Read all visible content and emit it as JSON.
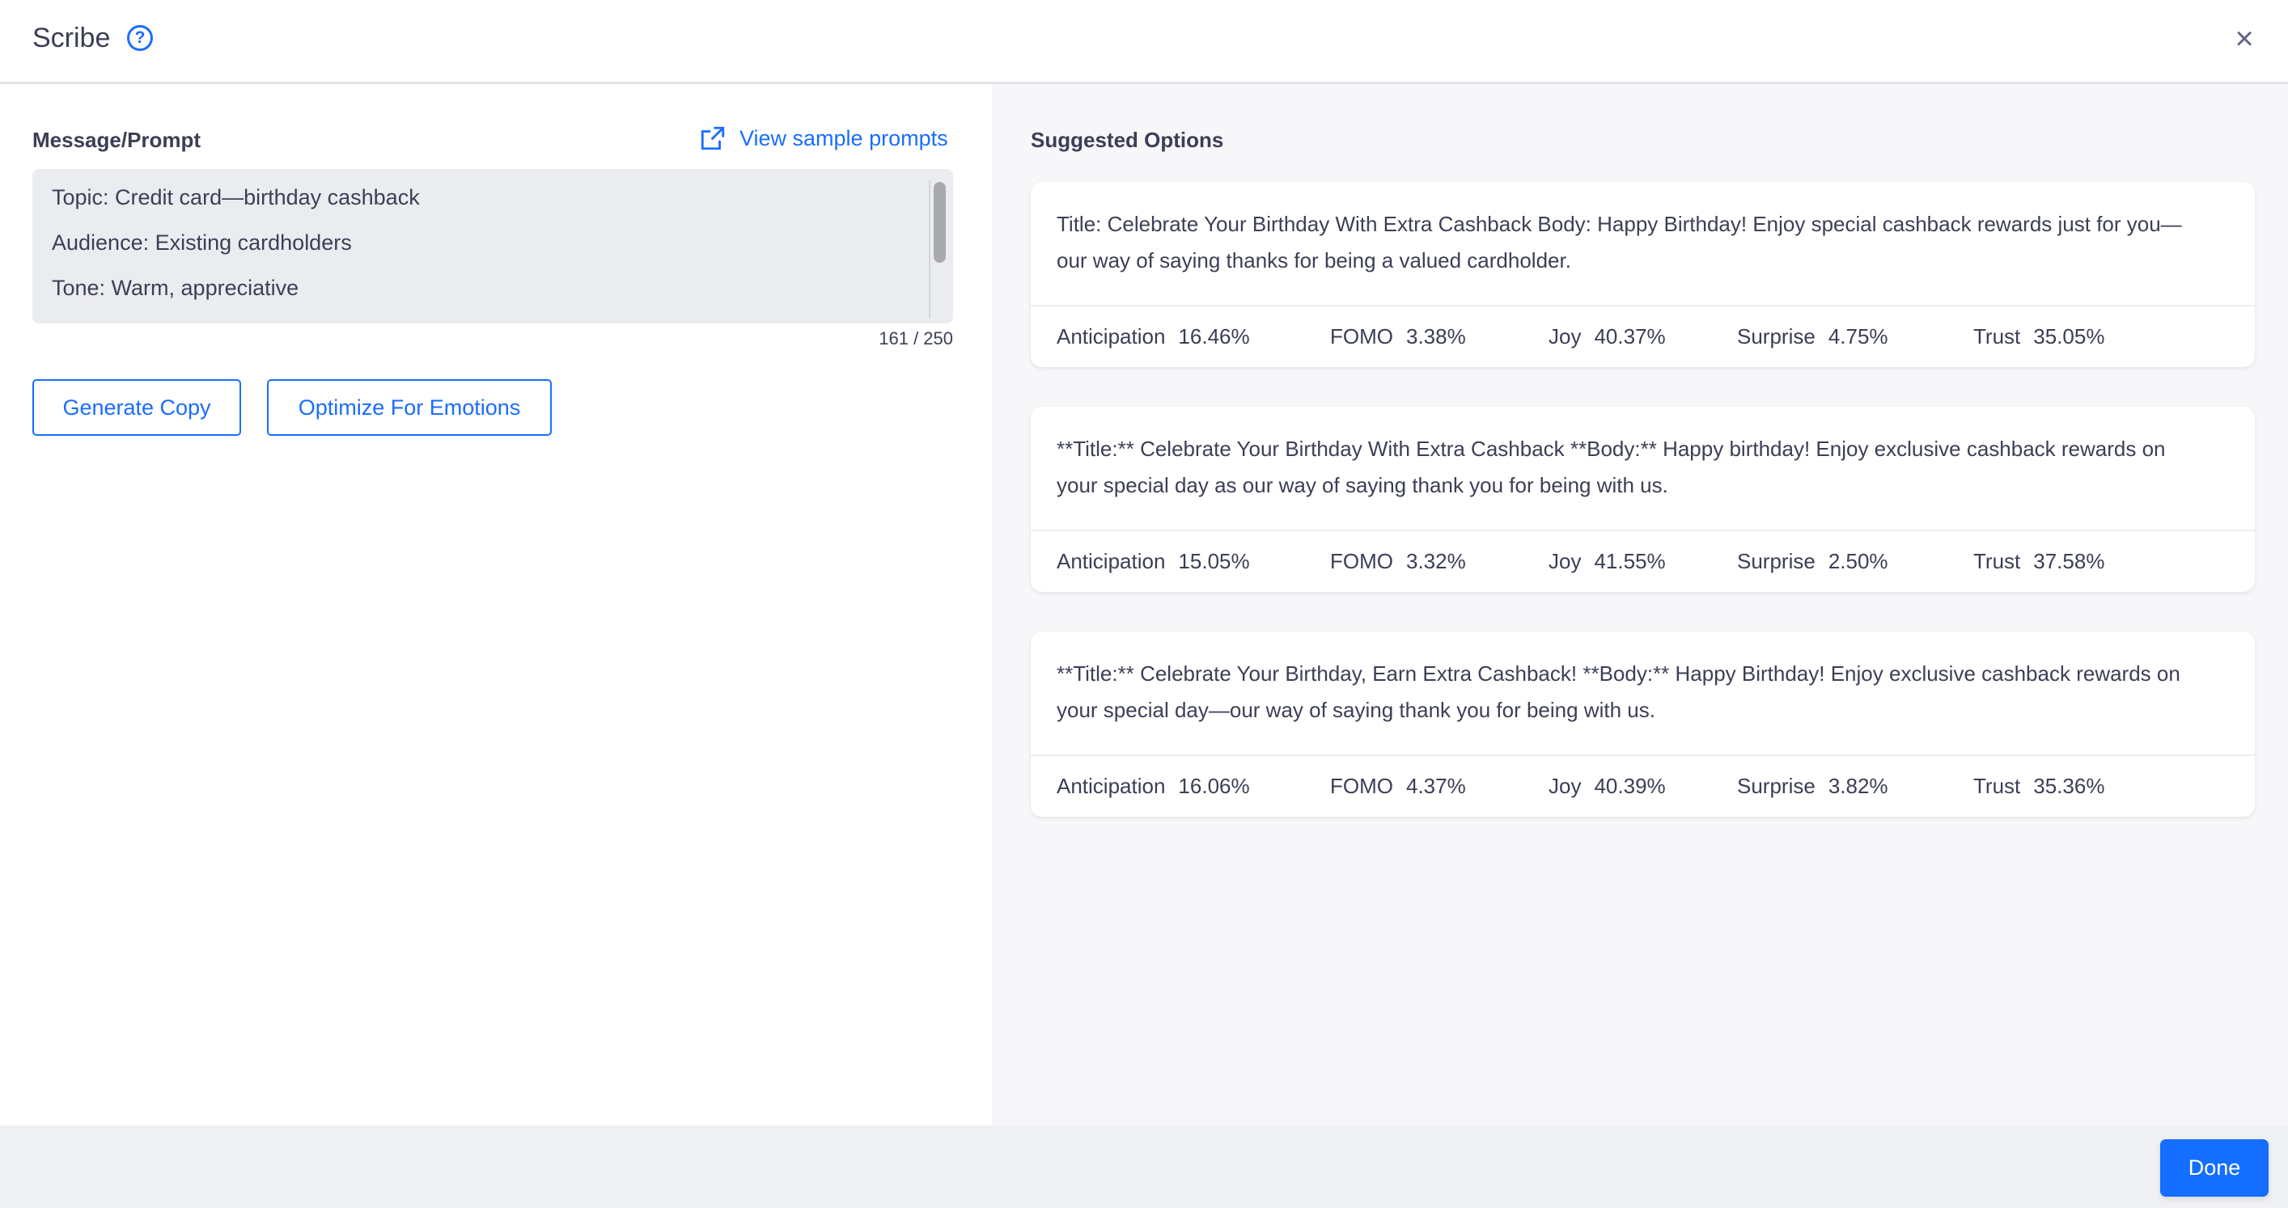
{
  "header": {
    "title": "Scribe",
    "help_icon": "question-circle-icon",
    "close_icon": "close-icon"
  },
  "prompt": {
    "label": "Message/Prompt",
    "sample_link": "View sample prompts",
    "lines": [
      "Topic: Credit card—birthday cashback",
      "Audience: Existing cardholders",
      "Tone: Warm, appreciative"
    ],
    "counter": "161 / 250"
  },
  "actions": {
    "generate": "Generate Copy",
    "optimize": "Optimize For Emotions"
  },
  "suggestions": {
    "label": "Suggested Options",
    "cards": [
      {
        "text": "Title: Celebrate Your Birthday With Extra Cashback Body: Happy Birthday! Enjoy special cashback rewards just for you—our way of saying thanks for being a valued cardholder.",
        "metrics": [
          {
            "name": "Anticipation",
            "value": "16.46%"
          },
          {
            "name": "FOMO",
            "value": "3.38%"
          },
          {
            "name": "Joy",
            "value": "40.37%"
          },
          {
            "name": "Surprise",
            "value": "4.75%"
          },
          {
            "name": "Trust",
            "value": "35.05%"
          }
        ]
      },
      {
        "text": "**Title:** Celebrate Your Birthday With Extra Cashback **Body:** Happy birthday! Enjoy exclusive cashback rewards on your special day as our way of saying thank you for being with us.",
        "metrics": [
          {
            "name": "Anticipation",
            "value": "15.05%"
          },
          {
            "name": "FOMO",
            "value": "3.32%"
          },
          {
            "name": "Joy",
            "value": "41.55%"
          },
          {
            "name": "Surprise",
            "value": "2.50%"
          },
          {
            "name": "Trust",
            "value": "37.58%"
          }
        ]
      },
      {
        "text": "**Title:** Celebrate Your Birthday, Earn Extra Cashback! **Body:** Happy Birthday! Enjoy exclusive cashback rewards on your special day—our way of saying thank you for being with us.",
        "metrics": [
          {
            "name": "Anticipation",
            "value": "16.06%"
          },
          {
            "name": "FOMO",
            "value": "4.37%"
          },
          {
            "name": "Joy",
            "value": "40.39%"
          },
          {
            "name": "Surprise",
            "value": "3.82%"
          },
          {
            "name": "Trust",
            "value": "35.36%"
          }
        ]
      }
    ]
  },
  "footer": {
    "done": "Done"
  },
  "colors": {
    "accent": "#146eff",
    "text": "#3b3e55"
  }
}
